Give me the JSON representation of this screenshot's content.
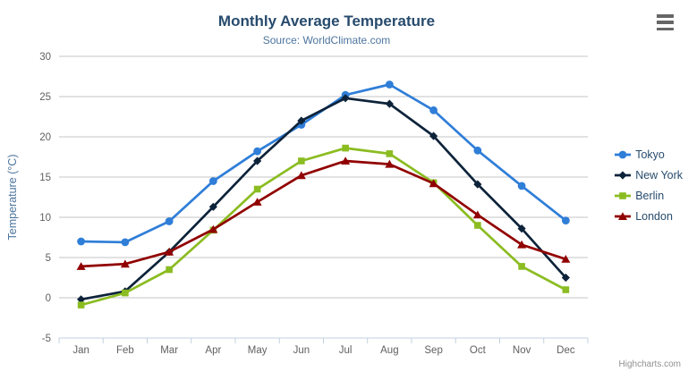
{
  "chart_data": {
    "type": "line",
    "title": "Monthly Average Temperature",
    "subtitle": "Source: WorldClimate.com",
    "xlabel": "",
    "ylabel": "Temperature (°C)",
    "ylim": [
      -5,
      30
    ],
    "y_ticks": [
      -5,
      0,
      5,
      10,
      15,
      20,
      25,
      30
    ],
    "grid": true,
    "legend_position": "right",
    "categories": [
      "Jan",
      "Feb",
      "Mar",
      "Apr",
      "May",
      "Jun",
      "Jul",
      "Aug",
      "Sep",
      "Oct",
      "Nov",
      "Dec"
    ],
    "series": [
      {
        "name": "Tokyo",
        "color": "#2f7ed8",
        "marker": "circle",
        "values": [
          7.0,
          6.9,
          9.5,
          14.5,
          18.2,
          21.5,
          25.2,
          26.5,
          23.3,
          18.3,
          13.9,
          9.6
        ]
      },
      {
        "name": "New York",
        "color": "#0d233a",
        "marker": "diamond",
        "values": [
          -0.2,
          0.8,
          5.7,
          11.3,
          17.0,
          22.0,
          24.8,
          24.1,
          20.1,
          14.1,
          8.6,
          2.5
        ]
      },
      {
        "name": "Berlin",
        "color": "#8bbc21",
        "marker": "square",
        "values": [
          -0.9,
          0.6,
          3.5,
          8.4,
          13.5,
          17.0,
          18.6,
          17.9,
          14.3,
          9.0,
          3.9,
          1.0
        ]
      },
      {
        "name": "London",
        "color": "#910000",
        "marker": "triangle",
        "values": [
          3.9,
          4.2,
          5.7,
          8.5,
          11.9,
          15.2,
          17.0,
          16.6,
          14.2,
          10.3,
          6.6,
          4.8
        ]
      }
    ]
  },
  "credits": {
    "label": "Highcharts.com"
  },
  "menu": {
    "icon": "hamburger-icon"
  },
  "colors": {
    "title_text": "#274b6d",
    "subtitle_text": "#4d759e",
    "axis_label": "#606060",
    "axis_title": "#4d759e",
    "grid_line": "#c6c6c6",
    "axis_line": "#c0d0e0",
    "tick_mark": "#c0d0e0",
    "legend_text": "#274b6d",
    "credits_text": "#909090",
    "menu_icon": "#666666",
    "background": "#ffffff"
  }
}
